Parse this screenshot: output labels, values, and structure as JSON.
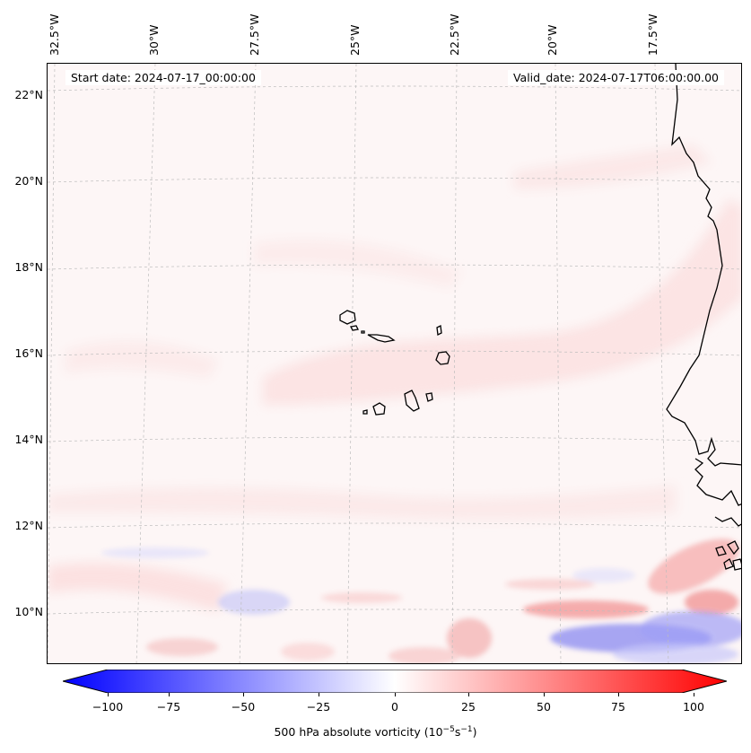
{
  "header": {
    "start_date": "Start date: 2024-07-17_00:00:00",
    "valid_date": "Valid_date: 2024-07-17T06:00:00.00"
  },
  "map": {
    "lon_labels": [
      "32.5°W",
      "30°W",
      "27.5°W",
      "25°W",
      "22.5°W",
      "20°W",
      "17.5°W"
    ],
    "lat_labels": [
      "22°N",
      "20°N",
      "18°N",
      "16°N",
      "14°N",
      "12°N",
      "10°N"
    ],
    "colors": {
      "negative": "#0000ff",
      "neutral": "#ffffff",
      "positive": "#ff0000",
      "coastline": "#000000",
      "gridline": "#bbbbbb"
    }
  },
  "colorbar": {
    "ticks": [
      "−100",
      "−75",
      "−50",
      "−25",
      "0",
      "25",
      "50",
      "75",
      "100"
    ],
    "min": -100,
    "max": 100,
    "label": "500 hPa absolute vorticity (10",
    "label_exp1": "−5",
    "label_mid": "s",
    "label_exp2": "−1",
    "label_end": ")"
  }
}
